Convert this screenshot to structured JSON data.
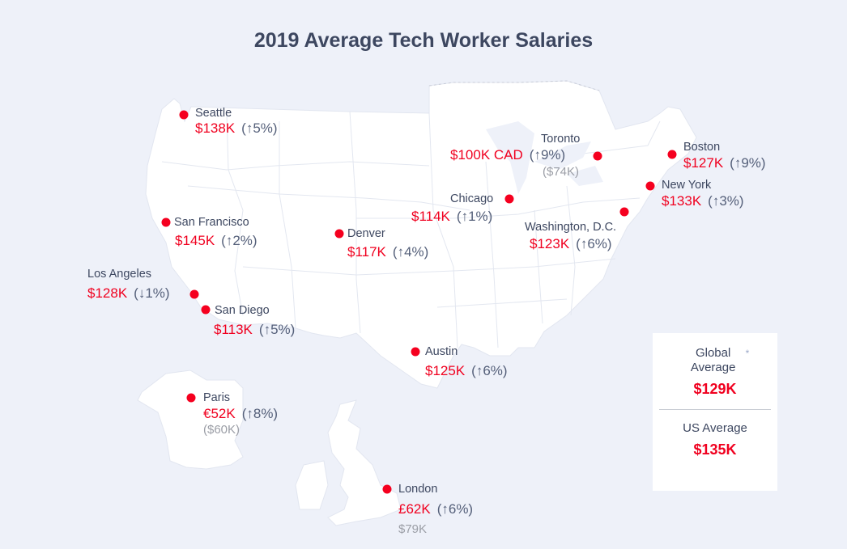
{
  "title": "2019 Average Tech Worker Salaries",
  "colors": {
    "accent": "#f0001f",
    "text": "#3d4760",
    "background": "#eef1f9",
    "land": "#ffffff"
  },
  "cities": [
    {
      "name": "Seattle",
      "salary": "$138K",
      "change": "(↑5%)"
    },
    {
      "name": "San Francisco",
      "salary": "$145K",
      "change": "(↑2%)"
    },
    {
      "name": "Los Angeles",
      "salary": "$128K",
      "change": "(↓1%)"
    },
    {
      "name": "San Diego",
      "salary": "$113K",
      "change": "(↑5%)"
    },
    {
      "name": "Denver",
      "salary": "$117K",
      "change": "(↑4%)"
    },
    {
      "name": "Austin",
      "salary": "$125K",
      "change": "(↑6%)"
    },
    {
      "name": "Chicago",
      "salary": "$114K",
      "change": "(↑1%)"
    },
    {
      "name": "Toronto",
      "salary": "$100K CAD",
      "change": "(↑9%)",
      "converted": "($74K)"
    },
    {
      "name": "Washington, D.C.",
      "salary": "$123K",
      "change": "(↑6%)"
    },
    {
      "name": "New York",
      "salary": "$133K",
      "change": "(↑3%)"
    },
    {
      "name": "Boston",
      "salary": "$127K",
      "change": "(↑9%)"
    },
    {
      "name": "Paris",
      "salary": "€52K",
      "change": "(↑8%)",
      "converted": "($60K)"
    },
    {
      "name": "London",
      "salary": "£62K",
      "change": "(↑6%)",
      "converted": "$79K"
    }
  ],
  "averages": {
    "global_label": "Global Average",
    "global_marker": "*",
    "global_value": "$129K",
    "us_label": "US Average",
    "us_value": "$135K"
  }
}
